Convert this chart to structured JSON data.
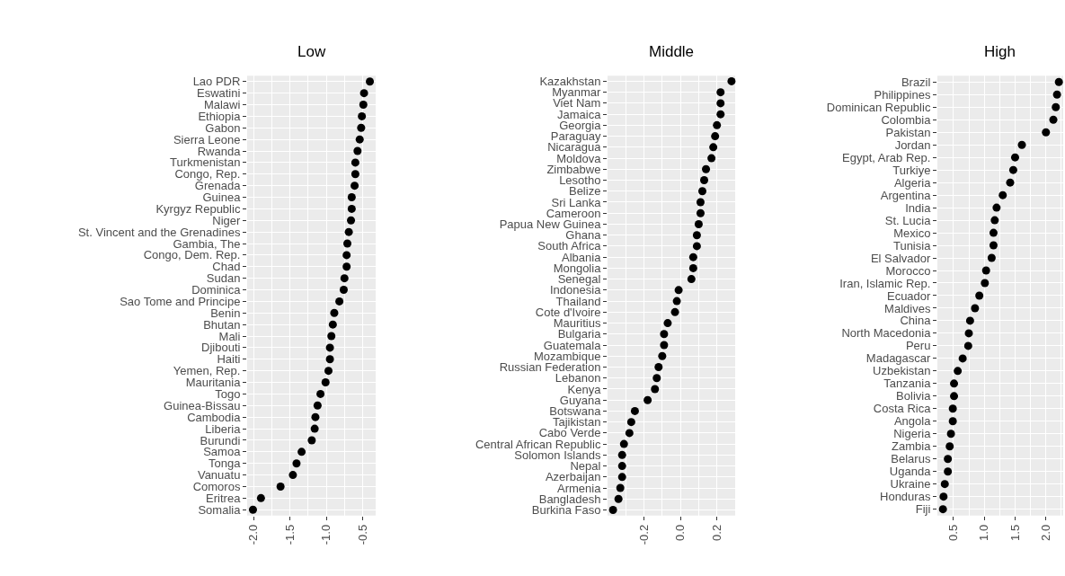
{
  "chart_data": [
    {
      "type": "scatter",
      "title": "Low",
      "orientation": "horizontal",
      "marker": "circle",
      "color": "#000000",
      "grid": true,
      "categories": [
        "Lao PDR",
        "Eswatini",
        "Malawi",
        "Ethiopia",
        "Gabon",
        "Sierra Leone",
        "Rwanda",
        "Turkmenistan",
        "Congo, Rep.",
        "Grenada",
        "Guinea",
        "Kyrgyz Republic",
        "Niger",
        "St. Vincent and the Grenadines",
        "Gambia, The",
        "Congo, Dem. Rep.",
        "Chad",
        "Sudan",
        "Dominica",
        "Sao Tome and Principe",
        "Benin",
        "Bhutan",
        "Mali",
        "Djibouti",
        "Haiti",
        "Yemen, Rep.",
        "Mauritania",
        "Togo",
        "Guinea-Bissau",
        "Cambodia",
        "Liberia",
        "Burundi",
        "Samoa",
        "Tonga",
        "Vanuatu",
        "Comoros",
        "Eritrea",
        "Somalia"
      ],
      "values": [
        -0.4,
        -0.48,
        -0.49,
        -0.51,
        -0.52,
        -0.54,
        -0.57,
        -0.6,
        -0.6,
        -0.61,
        -0.65,
        -0.65,
        -0.66,
        -0.69,
        -0.71,
        -0.72,
        -0.72,
        -0.75,
        -0.76,
        -0.82,
        -0.89,
        -0.91,
        -0.93,
        -0.95,
        -0.95,
        -0.97,
        -1.01,
        -1.08,
        -1.12,
        -1.15,
        -1.16,
        -1.2,
        -1.34,
        -1.41,
        -1.46,
        -1.63,
        -1.9,
        -2.01
      ],
      "xlim": [
        -2.09,
        -0.32
      ],
      "xticks": [
        {
          "value": -2,
          "label": "-2.0"
        },
        {
          "value": -1.5,
          "label": "-1.5"
        },
        {
          "value": -1,
          "label": "-1.0"
        },
        {
          "value": -0.5,
          "label": "-0.5"
        }
      ]
    },
    {
      "type": "scatter",
      "title": "Middle",
      "orientation": "horizontal",
      "marker": "circle",
      "color": "#000000",
      "grid": true,
      "categories": [
        "Kazakhstan",
        "Myanmar",
        "Viet Nam",
        "Jamaica",
        "Georgia",
        "Paraguay",
        "Nicaragua",
        "Moldova",
        "Zimbabwe",
        "Lesotho",
        "Belize",
        "Sri Lanka",
        "Cameroon",
        "Papua New Guinea",
        "Ghana",
        "South Africa",
        "Albania",
        "Mongolia",
        "Senegal",
        "Indonesia",
        "Thailand",
        "Cote d'Ivoire",
        "Mauritius",
        "Bulgaria",
        "Guatemala",
        "Mozambique",
        "Russian Federation",
        "Lebanon",
        "Kenya",
        "Guyana",
        "Botswana",
        "Tajikistan",
        "Cabo Verde",
        "Central African Republic",
        "Solomon Islands",
        "Nepal",
        "Azerbaijan",
        "Armenia",
        "Bangladesh",
        "Burkina Faso"
      ],
      "values": [
        0.28,
        0.22,
        0.22,
        0.22,
        0.2,
        0.19,
        0.18,
        0.17,
        0.14,
        0.13,
        0.12,
        0.11,
        0.11,
        0.1,
        0.09,
        0.09,
        0.07,
        0.07,
        0.06,
        -0.01,
        -0.02,
        -0.03,
        -0.07,
        -0.09,
        -0.09,
        -0.1,
        -0.12,
        -0.13,
        -0.14,
        -0.18,
        -0.25,
        -0.27,
        -0.28,
        -0.31,
        -0.32,
        -0.32,
        -0.32,
        -0.33,
        -0.34,
        -0.37
      ],
      "xlim": [
        -0.4,
        0.3
      ],
      "xticks": [
        {
          "value": -0.2,
          "label": "-0.2"
        },
        {
          "value": 0,
          "label": "0.0"
        },
        {
          "value": 0.2,
          "label": "0.2"
        }
      ]
    },
    {
      "type": "scatter",
      "title": "High",
      "orientation": "horizontal",
      "marker": "circle",
      "color": "#000000",
      "grid": true,
      "categories": [
        "Brazil",
        "Philippines",
        "Dominican Republic",
        "Colombia",
        "Pakistan",
        "Jordan",
        "Egypt, Arab Rep.",
        "Turkiye",
        "Algeria",
        "Argentina",
        "India",
        "St. Lucia",
        "Mexico",
        "Tunisia",
        "El Salvador",
        "Morocco",
        "Iran, Islamic Rep.",
        "Ecuador",
        "Maldives",
        "China",
        "North Macedonia",
        "Peru",
        "Madagascar",
        "Uzbekistan",
        "Tanzania",
        "Bolivia",
        "Costa Rica",
        "Angola",
        "Nigeria",
        "Zambia",
        "Belarus",
        "Uganda",
        "Ukraine",
        "Honduras",
        "Fiji"
      ],
      "values": [
        2.21,
        2.18,
        2.16,
        2.12,
        2.0,
        1.61,
        1.5,
        1.47,
        1.42,
        1.3,
        1.2,
        1.17,
        1.15,
        1.15,
        1.12,
        1.03,
        1.01,
        0.92,
        0.85,
        0.77,
        0.75,
        0.74,
        0.65,
        0.57,
        0.51,
        0.51,
        0.49,
        0.49,
        0.46,
        0.44,
        0.41,
        0.41,
        0.36,
        0.34,
        0.33
      ],
      "xlim": [
        0.24,
        2.28
      ],
      "xticks": [
        {
          "value": 0.5,
          "label": "0.5"
        },
        {
          "value": 1,
          "label": "1.0"
        },
        {
          "value": 1.5,
          "label": "1.5"
        },
        {
          "value": 2,
          "label": "2.0"
        }
      ]
    }
  ]
}
